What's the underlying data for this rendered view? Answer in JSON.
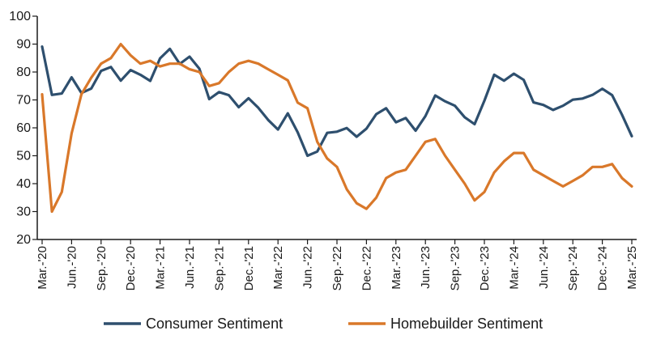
{
  "chart_data": {
    "type": "line",
    "title": "",
    "xlabel": "",
    "ylabel": "",
    "ylim": [
      20,
      100
    ],
    "yticks": [
      20,
      30,
      40,
      50,
      60,
      70,
      80,
      90,
      100
    ],
    "grid": false,
    "legend_position": "bottom",
    "x": [
      "Mar-20",
      "Apr-20",
      "May-20",
      "Jun-20",
      "Jul-20",
      "Aug-20",
      "Sep-20",
      "Oct-20",
      "Nov-20",
      "Dec-20",
      "Jan-21",
      "Feb-21",
      "Mar-21",
      "Apr-21",
      "May-21",
      "Jun-21",
      "Jul-21",
      "Aug-21",
      "Sep-21",
      "Oct-21",
      "Nov-21",
      "Dec-21",
      "Jan-22",
      "Feb-22",
      "Mar-22",
      "Apr-22",
      "May-22",
      "Jun-22",
      "Jul-22",
      "Aug-22",
      "Sep-22",
      "Oct-22",
      "Nov-22",
      "Dec-22",
      "Jan-23",
      "Feb-23",
      "Mar-23",
      "Apr-23",
      "May-23",
      "Jun-23",
      "Jul-23",
      "Aug-23",
      "Sep-23",
      "Oct-23",
      "Nov-23",
      "Dec-23",
      "Jan-24",
      "Feb-24",
      "Mar-24",
      "Apr-24",
      "May-24",
      "Jun-24",
      "Jul-24",
      "Aug-24",
      "Sep-24",
      "Oct-24",
      "Nov-24",
      "Dec-24",
      "Jan-25",
      "Feb-25",
      "Mar-25"
    ],
    "x_tick_labels": [
      {
        "index": 0,
        "label": "Mar.-'20"
      },
      {
        "index": 3,
        "label": "Jun.-'20"
      },
      {
        "index": 6,
        "label": "Sep.-'20"
      },
      {
        "index": 9,
        "label": "Dec.-'20"
      },
      {
        "index": 12,
        "label": "Mar.-'21"
      },
      {
        "index": 15,
        "label": "Jun.-'21"
      },
      {
        "index": 18,
        "label": "Sep.-'21"
      },
      {
        "index": 21,
        "label": "Dec.-'21"
      },
      {
        "index": 24,
        "label": "Mar.-'22"
      },
      {
        "index": 27,
        "label": "Jun.-'22"
      },
      {
        "index": 30,
        "label": "Sep.-'22"
      },
      {
        "index": 33,
        "label": "Dec.-'22"
      },
      {
        "index": 36,
        "label": "Mar.-'23"
      },
      {
        "index": 39,
        "label": "Jun.-'23"
      },
      {
        "index": 42,
        "label": "Sep.-'23"
      },
      {
        "index": 45,
        "label": "Dec.-'23"
      },
      {
        "index": 48,
        "label": "Mar.-'24"
      },
      {
        "index": 51,
        "label": "Jun.-'24"
      },
      {
        "index": 54,
        "label": "Sep.-'24"
      },
      {
        "index": 57,
        "label": "Dec.-'24"
      },
      {
        "index": 60,
        "label": "Mar.-'25"
      }
    ],
    "series": [
      {
        "name": "Consumer Sentiment",
        "color": "#2e4f6e",
        "values": [
          89.1,
          71.8,
          72.3,
          78.1,
          72.5,
          74.1,
          80.4,
          81.8,
          76.9,
          80.7,
          79.0,
          76.8,
          84.9,
          88.3,
          82.9,
          85.5,
          81.2,
          70.3,
          72.8,
          71.7,
          67.4,
          70.6,
          67.2,
          62.8,
          59.4,
          65.2,
          58.4,
          50.0,
          51.5,
          58.2,
          58.6,
          59.9,
          56.8,
          59.7,
          64.9,
          67.0,
          62.0,
          63.5,
          59.0,
          64.2,
          71.6,
          69.5,
          67.9,
          63.8,
          61.3,
          69.7,
          79.0,
          76.9,
          79.4,
          77.2,
          69.1,
          68.2,
          66.4,
          67.9,
          70.1,
          70.5,
          71.8,
          74.0,
          71.7,
          64.7,
          57.0
        ]
      },
      {
        "name": "Homebuilder Sentiment",
        "color": "#d9782a",
        "values": [
          72,
          30,
          37,
          58,
          72,
          78,
          83,
          85,
          90,
          86,
          83,
          84,
          82,
          83,
          83,
          81,
          80,
          75,
          76,
          80,
          83,
          84,
          83,
          81,
          79,
          77,
          69,
          67,
          55,
          49,
          46,
          38,
          33,
          31,
          35,
          42,
          44,
          45,
          50,
          55,
          56,
          50,
          45,
          40,
          34,
          37,
          44,
          48,
          51,
          51,
          45,
          43,
          41,
          39,
          41,
          43,
          46,
          46,
          47,
          42,
          39
        ]
      }
    ]
  }
}
